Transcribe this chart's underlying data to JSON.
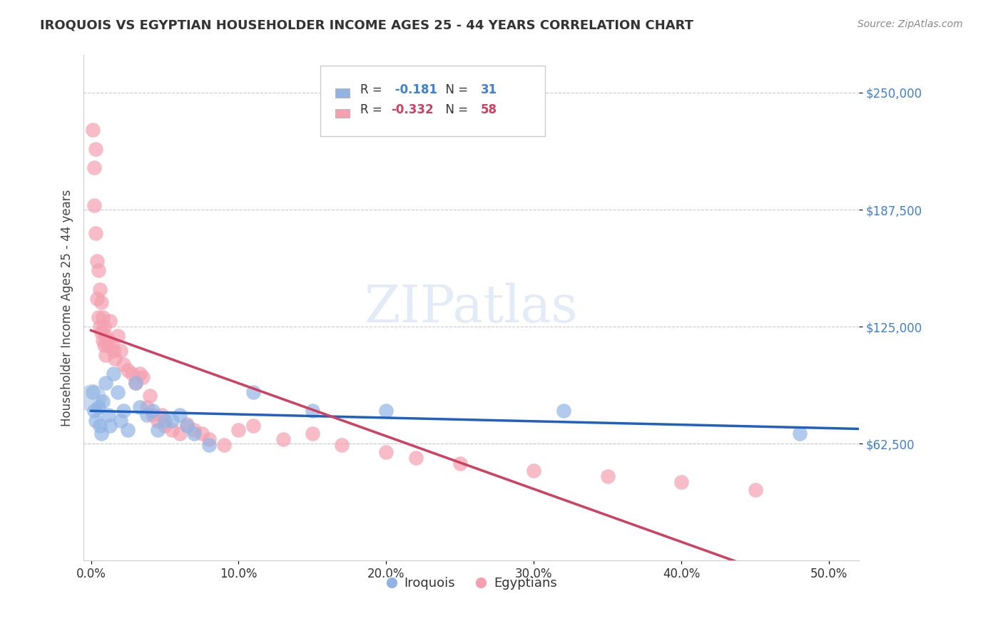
{
  "title": "IROQUOIS VS EGYPTIAN HOUSEHOLDER INCOME AGES 25 - 44 YEARS CORRELATION CHART",
  "source": "Source: ZipAtlas.com",
  "ylabel": "Householder Income Ages 25 - 44 years",
  "xlabel_ticks": [
    "0.0%",
    "10.0%",
    "20.0%",
    "30.0%",
    "40.0%",
    "50.0%"
  ],
  "xlabel_vals": [
    0.0,
    0.1,
    0.2,
    0.3,
    0.4,
    0.5
  ],
  "ytick_labels": [
    "$62,500",
    "$125,000",
    "$187,500",
    "$250,000"
  ],
  "ytick_vals": [
    62500,
    125000,
    187500,
    250000
  ],
  "ylim": [
    0,
    270000
  ],
  "xlim": [
    -0.005,
    0.52
  ],
  "r_iroquois": -0.181,
  "n_iroquois": 31,
  "r_egyptians": -0.332,
  "n_egyptians": 58,
  "iroquois_color": "#92b4e3",
  "egyptians_color": "#f4a0b0",
  "iroquois_line_color": "#2060c0",
  "egyptians_line_color": "#d04060",
  "watermark": "ZIPatlas",
  "iroquois_x": [
    0.001,
    0.002,
    0.003,
    0.005,
    0.006,
    0.007,
    0.008,
    0.01,
    0.012,
    0.013,
    0.015,
    0.018,
    0.02,
    0.022,
    0.025,
    0.03,
    0.033,
    0.038,
    0.042,
    0.045,
    0.05,
    0.055,
    0.06,
    0.065,
    0.07,
    0.08,
    0.11,
    0.15,
    0.2,
    0.32,
    0.48
  ],
  "iroquois_y": [
    90000,
    80000,
    75000,
    82000,
    72000,
    68000,
    85000,
    95000,
    78000,
    72000,
    100000,
    90000,
    75000,
    80000,
    70000,
    95000,
    82000,
    78000,
    80000,
    70000,
    75000,
    75000,
    78000,
    72000,
    68000,
    62000,
    90000,
    80000,
    80000,
    80000,
    68000
  ],
  "egyptians_x": [
    0.001,
    0.002,
    0.002,
    0.003,
    0.003,
    0.004,
    0.004,
    0.005,
    0.005,
    0.006,
    0.006,
    0.007,
    0.007,
    0.008,
    0.008,
    0.009,
    0.009,
    0.01,
    0.01,
    0.011,
    0.012,
    0.013,
    0.014,
    0.015,
    0.016,
    0.018,
    0.02,
    0.022,
    0.025,
    0.028,
    0.03,
    0.033,
    0.035,
    0.038,
    0.04,
    0.042,
    0.045,
    0.048,
    0.05,
    0.055,
    0.06,
    0.065,
    0.07,
    0.075,
    0.08,
    0.09,
    0.1,
    0.11,
    0.13,
    0.15,
    0.17,
    0.2,
    0.22,
    0.25,
    0.3,
    0.35,
    0.4,
    0.45
  ],
  "egyptians_y": [
    230000,
    210000,
    190000,
    175000,
    220000,
    160000,
    140000,
    155000,
    130000,
    145000,
    125000,
    138000,
    122000,
    130000,
    118000,
    125000,
    115000,
    120000,
    110000,
    115000,
    118000,
    128000,
    115000,
    112000,
    108000,
    120000,
    112000,
    105000,
    102000,
    100000,
    95000,
    100000,
    98000,
    82000,
    88000,
    78000,
    75000,
    78000,
    72000,
    70000,
    68000,
    73000,
    70000,
    68000,
    65000,
    62000,
    70000,
    72000,
    65000,
    68000,
    62000,
    58000,
    55000,
    52000,
    48000,
    45000,
    42000,
    38000
  ]
}
